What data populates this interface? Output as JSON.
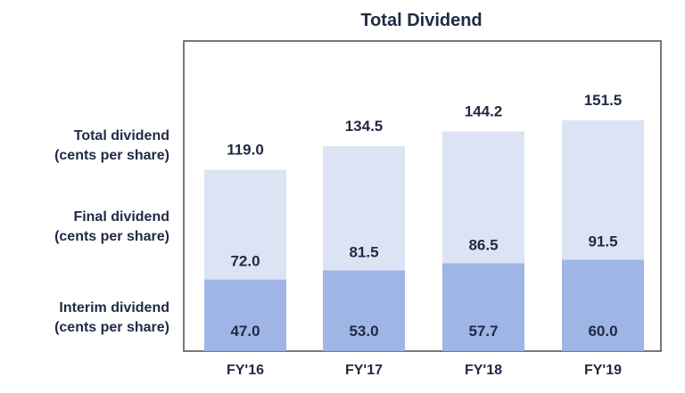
{
  "chart_data": {
    "type": "bar",
    "stacked": true,
    "title": "Total Dividend",
    "categories": [
      "FY'16",
      "FY'17",
      "FY'18",
      "FY'19"
    ],
    "series": [
      {
        "name": "Interim dividend (cents per share)",
        "values": [
          47.0,
          53.0,
          57.7,
          60.0
        ],
        "labels": [
          "47.0",
          "53.0",
          "57.7",
          "60.0"
        ]
      },
      {
        "name": "Final dividend (cents per share)",
        "values": [
          72.0,
          81.5,
          86.5,
          91.5
        ],
        "labels": [
          "72.0",
          "81.5",
          "86.5",
          "91.5"
        ]
      }
    ],
    "totals": [
      119.0,
      134.5,
      144.2,
      151.5
    ],
    "total_labels": [
      "119.0",
      "134.5",
      "144.2",
      "151.5"
    ],
    "row_labels": [
      {
        "line1": "Total dividend",
        "line2": "(cents per share)"
      },
      {
        "line1": "Final dividend",
        "line2": "(cents per share)"
      },
      {
        "line1": "Interim dividend",
        "line2": "(cents per share)"
      }
    ],
    "ylim": [
      0,
      180
    ],
    "grid": false,
    "legend": "left row labels",
    "colors": {
      "interim": "#9fb5e6",
      "final": "#dbe3f4",
      "frame": "#4a4a4a",
      "text": "#1f2a44"
    }
  }
}
